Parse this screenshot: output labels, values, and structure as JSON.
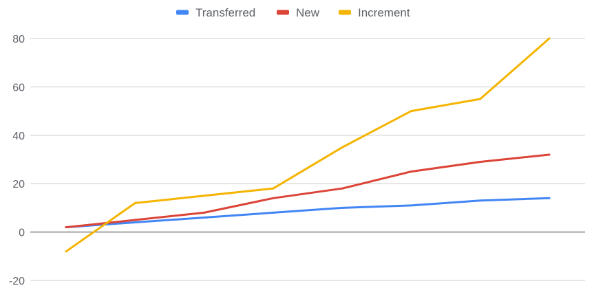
{
  "chart_data": {
    "type": "line",
    "title": "",
    "xlabel": "",
    "ylabel": "",
    "x": [
      1,
      2,
      3,
      4,
      5,
      6,
      7,
      8
    ],
    "ylim": [
      -20,
      80
    ],
    "yticks": [
      -20,
      0,
      20,
      40,
      60,
      80
    ],
    "grid": true,
    "legend": "top-center",
    "series": [
      {
        "name": "Transferred",
        "color": "#4285f4",
        "values": [
          2,
          4,
          6,
          8,
          10,
          11,
          13,
          14
        ]
      },
      {
        "name": "New",
        "color": "#db4437",
        "values": [
          2,
          5,
          8,
          14,
          18,
          25,
          29,
          32
        ]
      },
      {
        "name": "Increment",
        "color": "#f4b400",
        "values": [
          -8,
          12,
          15,
          18,
          35,
          50,
          55,
          80
        ]
      }
    ]
  }
}
